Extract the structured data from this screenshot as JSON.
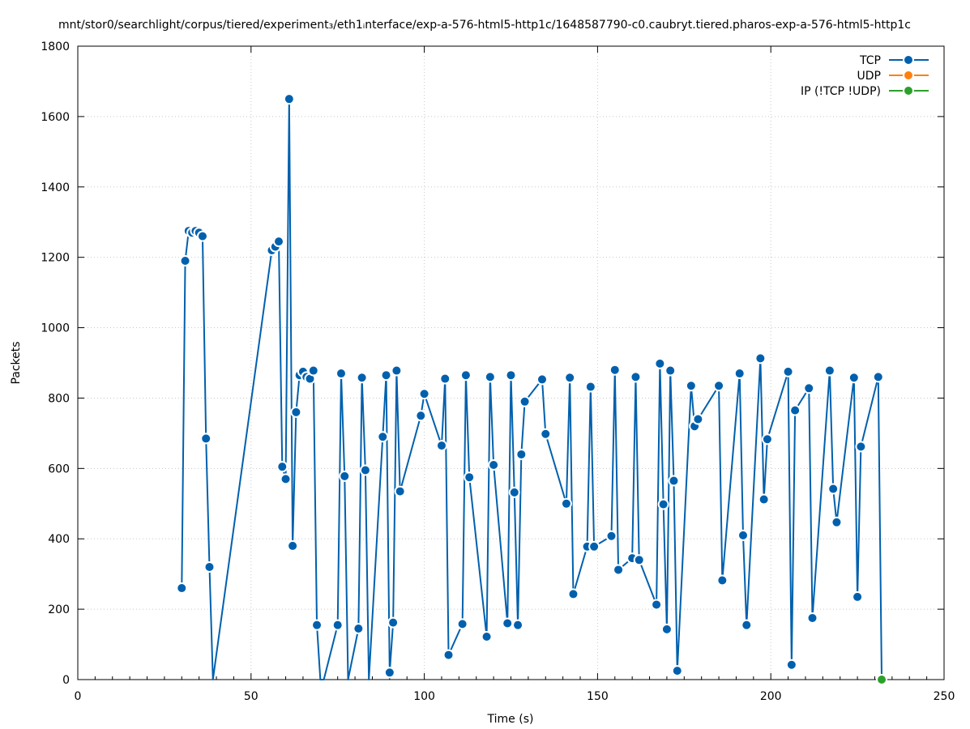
{
  "chart_data": {
    "type": "line",
    "title": "mnt/stor0/searchlight/corpus/tiered/experiment₃/eth1ᵢnterface/exp-a-576-html5-http1c/1648587790-c0.caubryt.tiered.pharos-exp-a-576-html5-http1c",
    "xlabel": "Time (s)",
    "ylabel": "Packets",
    "xlim": [
      0,
      250
    ],
    "ylim": [
      0,
      1800
    ],
    "xticks": [
      0,
      50,
      100,
      150,
      200,
      250
    ],
    "yticks": [
      0,
      200,
      400,
      600,
      800,
      1000,
      1200,
      1400,
      1600,
      1800
    ],
    "grid": true,
    "legend_position": "top-right",
    "series": [
      {
        "name": "TCP",
        "color": "#0060ad",
        "x": [
          30,
          31,
          32,
          33,
          34,
          35,
          36,
          37,
          38,
          39,
          56,
          57,
          58,
          59,
          60,
          61,
          62,
          63,
          64,
          65,
          66,
          67,
          68,
          69,
          70,
          71,
          75,
          76,
          77,
          78,
          81,
          82,
          83,
          84,
          88,
          89,
          90,
          91,
          92,
          93,
          99,
          100,
          105,
          106,
          107,
          111,
          112,
          113,
          118,
          119,
          120,
          124,
          125,
          126,
          127,
          128,
          129,
          134,
          135,
          141,
          142,
          143,
          147,
          148,
          149,
          154,
          155,
          156,
          160,
          161,
          162,
          167,
          168,
          169,
          170,
          171,
          172,
          173,
          177,
          178,
          179,
          185,
          186,
          191,
          192,
          193,
          197,
          198,
          199,
          205,
          206,
          207,
          211,
          212,
          217,
          218,
          219,
          224,
          225,
          226,
          231,
          232
        ],
        "y": [
          260,
          1190,
          1275,
          1270,
          1275,
          1270,
          1260,
          685,
          320,
          0,
          1220,
          1230,
          1245,
          605,
          570,
          1650,
          380,
          760,
          865,
          875,
          860,
          855,
          878,
          155,
          0,
          0,
          155,
          870,
          578,
          0,
          145,
          858,
          595,
          0,
          690,
          865,
          20,
          162,
          878,
          535,
          750,
          812,
          665,
          855,
          70,
          158,
          865,
          575,
          122,
          860,
          610,
          160,
          865,
          532,
          155,
          640,
          790,
          853,
          698,
          500,
          858,
          243,
          378,
          832,
          378,
          408,
          880,
          312,
          345,
          860,
          340,
          213,
          898,
          498,
          143,
          878,
          565,
          25,
          835,
          720,
          740,
          835,
          282,
          870,
          410,
          155,
          913,
          512,
          683,
          875,
          42,
          765,
          828,
          175,
          878,
          542,
          447,
          858,
          235,
          662,
          860,
          0
        ]
      },
      {
        "name": "UDP",
        "color": "#ff7f0e",
        "x": [],
        "y": []
      },
      {
        "name": "IP (!TCP  !UDP)",
        "color": "#2ca02c",
        "x": [
          232
        ],
        "y": [
          0
        ]
      }
    ]
  }
}
